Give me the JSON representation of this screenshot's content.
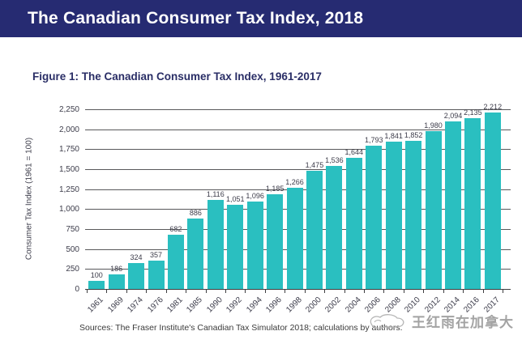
{
  "header": {
    "title": "The Canadian Consumer Tax Index, 2018"
  },
  "figure": {
    "title": "Figure 1: The Canadian Consumer Tax Index, 1961-2017"
  },
  "chart_data": {
    "type": "bar",
    "title": "Figure 1: The Canadian Consumer Tax Index, 1961-2017",
    "categories": [
      "1961",
      "1969",
      "1974",
      "1976",
      "1981",
      "1985",
      "1990",
      "1992",
      "1994",
      "1996",
      "1998",
      "2000",
      "2002",
      "2004",
      "2006",
      "2008",
      "2010",
      "2012",
      "2014",
      "2016",
      "2017"
    ],
    "values": [
      100,
      186,
      324,
      357,
      682,
      886,
      1116,
      1051,
      1096,
      1185,
      1266,
      1475,
      1536,
      1644,
      1793,
      1841,
      1852,
      1980,
      2094,
      2135,
      2212
    ],
    "value_labels": [
      "100",
      "186",
      "324",
      "357",
      "682",
      "886",
      "1,116",
      "1,051",
      "1,096",
      "1,185",
      "1,266",
      "1,475",
      "1,536",
      "1,644",
      "1,793",
      "1,841",
      "1,852",
      "1,980",
      "2,094",
      "2,135",
      "2,212"
    ],
    "xlabel": "",
    "ylabel": "Consumer Tax Index (1961 = 100)",
    "ylim": [
      0,
      2250
    ],
    "ytick_interval": 250,
    "ytick_labels": [
      "0",
      "250",
      "500",
      "750",
      "1,000",
      "1,250",
      "1,500",
      "1,750",
      "2,000",
      "2,250"
    ],
    "grid": true,
    "legend": "none",
    "bar_color": "#2abfc0"
  },
  "footer": {
    "sources": "Sources: The Fraser Institute's Canadian Tax Simulator 2018; calculations by authors."
  },
  "watermark": {
    "text": "王红雨在加拿大",
    "icon": "scribble-cloud-icon"
  },
  "colors": {
    "header_bg": "#262b72",
    "header_text": "#ffffff",
    "figure_title": "#2a2e66",
    "bar": "#2abfc0",
    "gridline": "#59595b",
    "axis": "#3e3e40",
    "label_text": "#3c3c4a",
    "watermark_text": "#a3a3a3"
  }
}
